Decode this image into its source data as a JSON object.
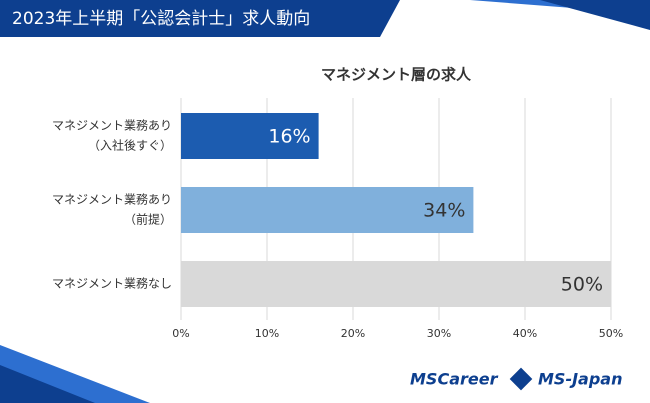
{
  "header": {
    "title": "2023年上半期「公認会計士」求人動向"
  },
  "chart_data": {
    "type": "bar",
    "orientation": "horizontal",
    "title": "マネジメント層の求人",
    "categories": [
      [
        "マネジメント業務あり",
        "（入社後すぐ）"
      ],
      [
        "マネジメント業務あり",
        "（前提）"
      ],
      [
        "マネジメント業務なし"
      ]
    ],
    "values": [
      16,
      34,
      50
    ],
    "value_labels": [
      "16%",
      "34%",
      "50%"
    ],
    "colors": [
      "#1c5cb0",
      "#80b0dc",
      "#d9d9d9"
    ],
    "value_label_colors": [
      "#ffffff",
      "#333333",
      "#333333"
    ],
    "xlim": [
      0,
      50
    ],
    "xticks": [
      {
        "value": 0,
        "label": "0%"
      },
      {
        "value": 10,
        "label": "10%"
      },
      {
        "value": 20,
        "label": "20%"
      },
      {
        "value": 30,
        "label": "30%"
      },
      {
        "value": 40,
        "label": "40%"
      },
      {
        "value": 50,
        "label": "50%"
      }
    ],
    "grid": true
  },
  "logos": [
    "MSCareer",
    "MS-Japan"
  ]
}
